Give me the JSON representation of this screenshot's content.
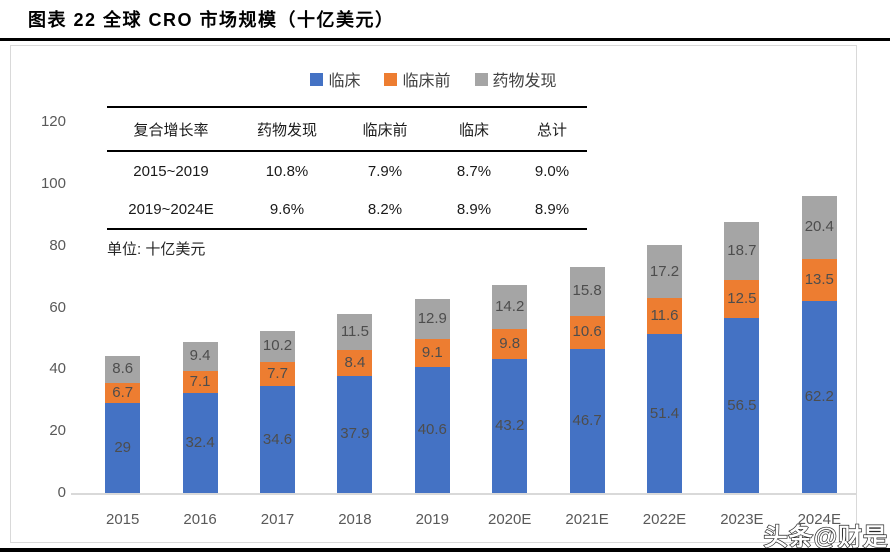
{
  "title": "图表 22 全球 CRO 市场规模（十亿美元）",
  "unit_note": "单位: 十亿美元",
  "watermark": "头条@财是",
  "cagr_table": {
    "headers": [
      "复合增长率",
      "药物发现",
      "临床前",
      "临床",
      "总计"
    ],
    "rows": [
      [
        "2015~2019",
        "10.8%",
        "7.9%",
        "8.7%",
        "9.0%"
      ],
      [
        "2019~2024E",
        "9.6%",
        "8.2%",
        "8.9%",
        "8.9%"
      ]
    ]
  },
  "chart_data": {
    "type": "bar",
    "stacked": true,
    "title": "全球 CRO 市场规模（十亿美元）",
    "categories": [
      "2015",
      "2016",
      "2017",
      "2018",
      "2019",
      "2020E",
      "2021E",
      "2022E",
      "2023E",
      "2024E"
    ],
    "series": [
      {
        "name": "临床",
        "color": "#4472C4",
        "values": [
          29,
          32.4,
          34.6,
          37.9,
          40.6,
          43.2,
          46.7,
          51.4,
          56.5,
          62.2
        ]
      },
      {
        "name": "临床前",
        "color": "#ED7D31",
        "values": [
          6.7,
          7.1,
          7.7,
          8.4,
          9.1,
          9.8,
          10.6,
          11.6,
          12.5,
          13.5
        ]
      },
      {
        "name": "药物发现",
        "color": "#A5A5A5",
        "values": [
          8.6,
          9.4,
          10.2,
          11.5,
          12.9,
          14.2,
          15.8,
          17.2,
          18.7,
          20.4
        ]
      }
    ],
    "ylim": [
      0,
      120
    ],
    "yticks": [
      0,
      20,
      40,
      60,
      80,
      100,
      120
    ],
    "grid": false,
    "legend_position": "top-center",
    "axis_label_color": "#595959",
    "data_label_color": "#4d4d4d"
  }
}
